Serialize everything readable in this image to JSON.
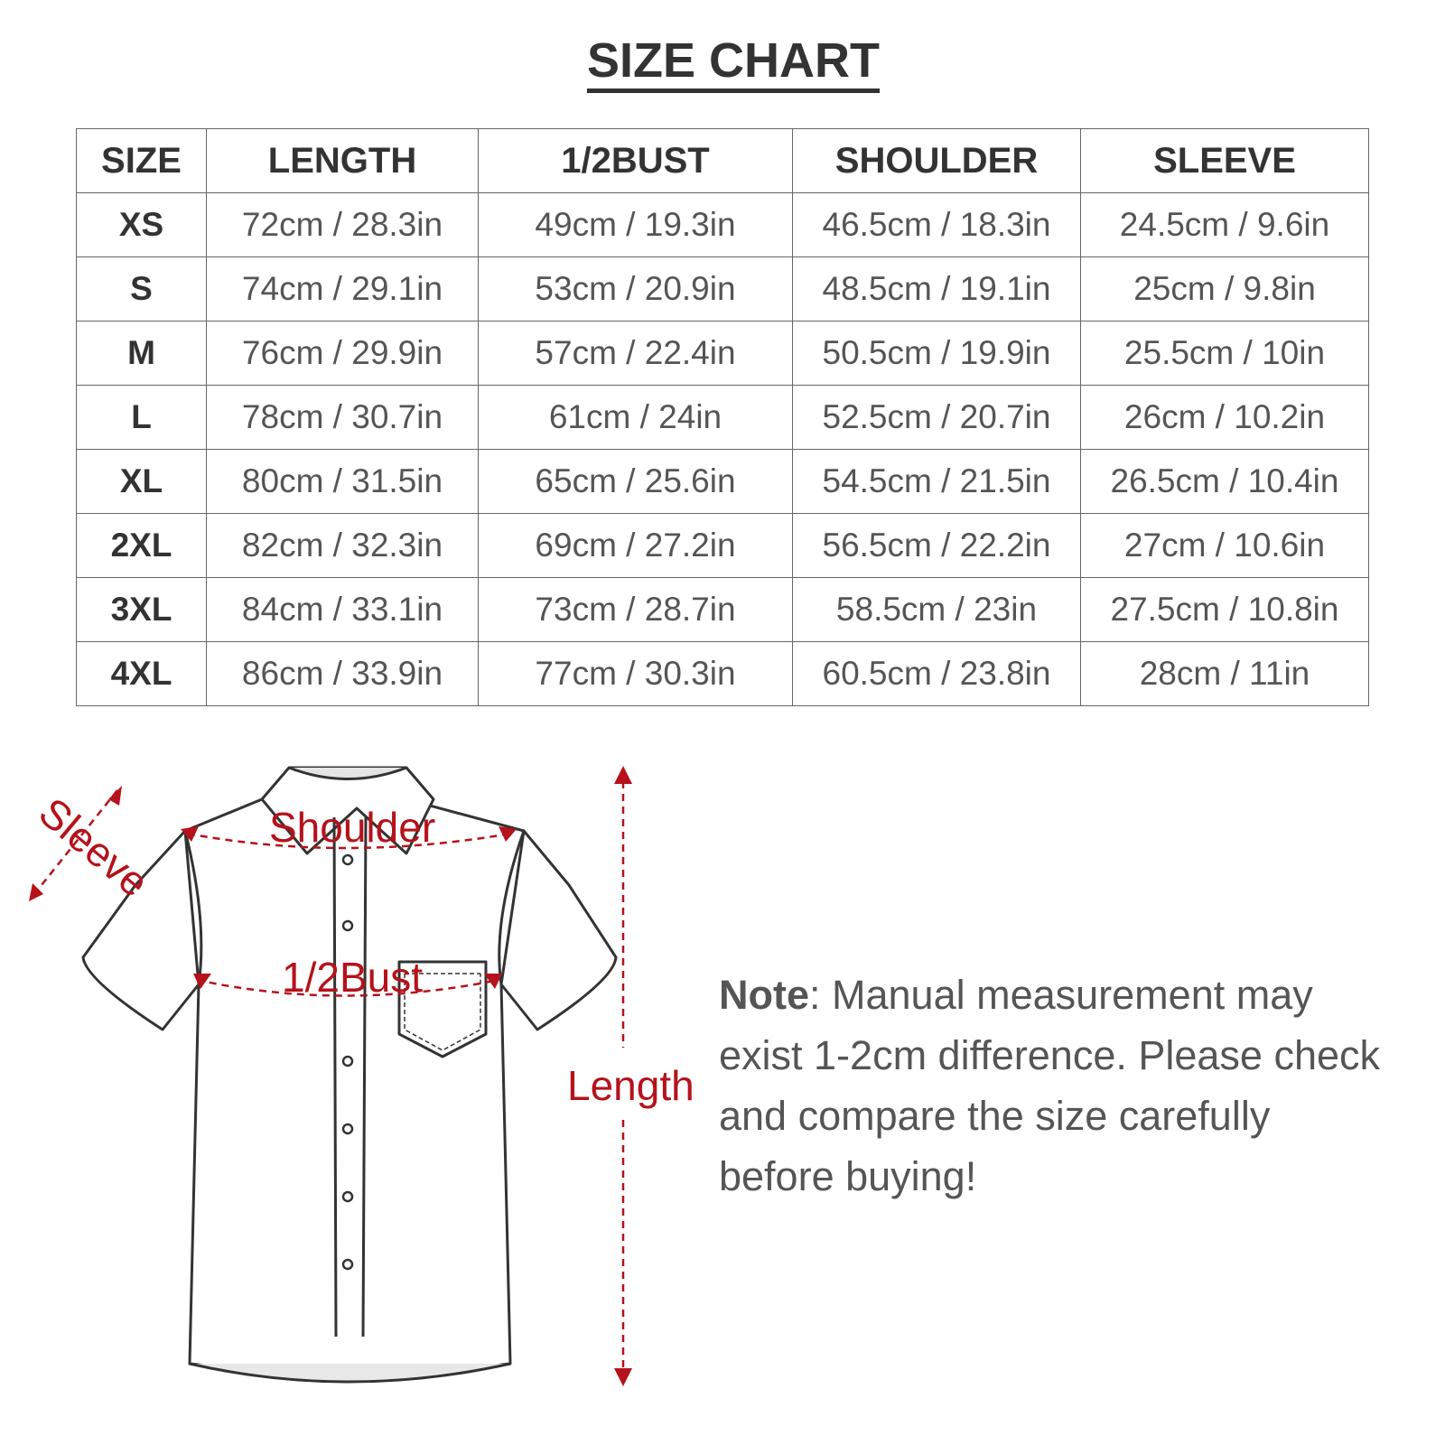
{
  "title": "SIZE CHART",
  "table": {
    "headers": [
      "SIZE",
      "LENGTH",
      "1/2BUST",
      "SHOULDER",
      "SLEEVE"
    ],
    "rows": [
      [
        "XS",
        "72cm / 28.3in",
        "49cm / 19.3in",
        "46.5cm / 18.3in",
        "24.5cm / 9.6in"
      ],
      [
        "S",
        "74cm / 29.1in",
        "53cm / 20.9in",
        "48.5cm / 19.1in",
        "25cm / 9.8in"
      ],
      [
        "M",
        "76cm / 29.9in",
        "57cm / 22.4in",
        "50.5cm / 19.9in",
        "25.5cm / 10in"
      ],
      [
        "L",
        "78cm / 30.7in",
        "61cm / 24in",
        "52.5cm / 20.7in",
        "26cm / 10.2in"
      ],
      [
        "XL",
        "80cm / 31.5in",
        "65cm / 25.6in",
        "54.5cm / 21.5in",
        "26.5cm / 10.4in"
      ],
      [
        "2XL",
        "82cm / 32.3in",
        "69cm / 27.2in",
        "56.5cm / 22.2in",
        "27cm / 10.6in"
      ],
      [
        "3XL",
        "84cm / 33.1in",
        "73cm / 28.7in",
        "58.5cm / 23in",
        "27.5cm / 10.8in"
      ],
      [
        "4XL",
        "86cm / 33.9in",
        "77cm / 30.3in",
        "60.5cm / 23.8in",
        "28cm / 11in"
      ]
    ]
  },
  "diagram": {
    "sleeve": "Sleeve",
    "shoulder": "Shoulder",
    "bust": "1/2Bust",
    "length": "Length",
    "accent_color": "#b5121b"
  },
  "note": {
    "label": "Note",
    "text": ": Manual measurement may exist 1-2cm difference. Please check and compare the size carefully before buying!"
  }
}
